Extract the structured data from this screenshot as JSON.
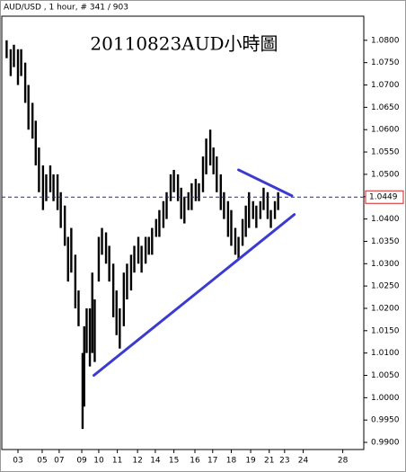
{
  "chart_data": {
    "type": "range",
    "header": "AUD/USD , 1 hour, # 341 / 903",
    "title": "20110823AUD小時圖",
    "color": "#000000",
    "x": [
      4,
      9,
      13,
      18,
      22,
      27,
      31,
      36,
      40,
      44,
      49,
      53,
      58,
      62,
      67,
      71,
      76,
      80,
      84,
      89,
      93,
      98,
      100,
      103,
      107,
      110,
      113,
      118,
      122,
      127,
      131,
      136,
      140,
      144,
      149,
      153,
      158,
      162,
      167,
      171,
      176,
      180,
      184,
      189,
      193,
      198,
      202,
      207,
      211,
      216,
      220,
      224,
      229,
      233,
      238,
      242,
      247,
      251,
      256,
      260,
      264,
      269,
      273,
      278,
      282,
      287,
      291,
      296,
      300,
      304,
      309,
      313,
      318,
      322,
      327,
      331,
      336,
      340
    ],
    "lows": [
      1.076,
      1.072,
      1.074,
      1.07,
      1.072,
      1.066,
      1.06,
      1.058,
      1.052,
      1.046,
      1.042,
      1.044,
      1.046,
      1.044,
      1.042,
      1.038,
      1.034,
      1.026,
      1.028,
      1.02,
      1.016,
      0.993,
      0.998,
      1.01,
      1.007,
      1.01,
      1.008,
      1.026,
      1.032,
      1.03,
      1.026,
      1.018,
      1.014,
      1.011,
      1.016,
      1.022,
      1.024,
      1.028,
      1.03,
      1.028,
      1.03,
      1.032,
      1.032,
      1.036,
      1.036,
      1.038,
      1.04,
      1.044,
      1.046,
      1.044,
      1.04,
      1.039,
      1.042,
      1.042,
      1.044,
      1.044,
      1.046,
      1.05,
      1.052,
      1.05,
      1.046,
      1.042,
      1.04,
      1.036,
      1.034,
      1.032,
      1.031,
      1.034,
      1.036,
      1.038,
      1.04,
      1.038,
      1.04,
      1.042,
      1.04,
      1.038,
      1.04,
      1.042
    ],
    "highs": [
      1.08,
      1.078,
      1.079,
      1.078,
      1.078,
      1.075,
      1.07,
      1.066,
      1.062,
      1.056,
      1.052,
      1.05,
      1.052,
      1.05,
      1.05,
      1.046,
      1.043,
      1.036,
      1.038,
      1.032,
      1.024,
      1.01,
      1.016,
      1.02,
      1.02,
      1.028,
      1.022,
      1.036,
      1.038,
      1.037,
      1.034,
      1.03,
      1.024,
      1.02,
      1.028,
      1.03,
      1.032,
      1.034,
      1.036,
      1.034,
      1.036,
      1.036,
      1.038,
      1.04,
      1.042,
      1.044,
      1.046,
      1.05,
      1.051,
      1.05,
      1.047,
      1.045,
      1.046,
      1.048,
      1.049,
      1.048,
      1.054,
      1.058,
      1.06,
      1.056,
      1.054,
      1.05,
      1.046,
      1.044,
      1.042,
      1.038,
      1.036,
      1.04,
      1.043,
      1.046,
      1.044,
      1.043,
      1.044,
      1.047,
      1.046,
      1.042,
      1.044,
      1.046
    ],
    "xlim": [
      -2,
      446
    ],
    "ylim": [
      0.9884,
      1.0854
    ],
    "yticks": [
      {
        "value": 0.99,
        "label": "0.9900"
      },
      {
        "value": 0.995,
        "label": "0.9950"
      },
      {
        "value": 1.0,
        "label": "1.0000"
      },
      {
        "value": 1.005,
        "label": "1.0050"
      },
      {
        "value": 1.01,
        "label": "1.0100"
      },
      {
        "value": 1.015,
        "label": "1.0150"
      },
      {
        "value": 1.02,
        "label": "1.0200"
      },
      {
        "value": 1.025,
        "label": "1.0250"
      },
      {
        "value": 1.03,
        "label": "1.0300"
      },
      {
        "value": 1.035,
        "label": "1.0350"
      },
      {
        "value": 1.04,
        "label": "1.0400"
      },
      {
        "value": 1.045,
        "label": "1.0450"
      },
      {
        "value": 1.05,
        "label": "1.0500"
      },
      {
        "value": 1.055,
        "label": "1.0550"
      },
      {
        "value": 1.06,
        "label": "1.0600"
      },
      {
        "value": 1.065,
        "label": "1.0650"
      },
      {
        "value": 1.07,
        "label": "1.0700"
      },
      {
        "value": 1.075,
        "label": "1.0750"
      },
      {
        "value": 1.08,
        "label": "1.0800"
      }
    ],
    "xticks": [
      {
        "value": 18,
        "label": "03"
      },
      {
        "value": 48,
        "label": "05"
      },
      {
        "value": 69,
        "label": "07"
      },
      {
        "value": 97,
        "label": "09"
      },
      {
        "value": 118,
        "label": "10"
      },
      {
        "value": 141,
        "label": "11"
      },
      {
        "value": 166,
        "label": "12"
      },
      {
        "value": 188,
        "label": "14"
      },
      {
        "value": 211,
        "label": "15"
      },
      {
        "value": 237,
        "label": "16"
      },
      {
        "value": 259,
        "label": "17"
      },
      {
        "value": 282,
        "label": "18"
      },
      {
        "value": 306,
        "label": "19"
      },
      {
        "value": 329,
        "label": "21"
      },
      {
        "value": 348,
        "label": "23"
      },
      {
        "value": 371,
        "label": "24"
      },
      {
        "value": 420,
        "label": "28"
      }
    ],
    "last_price": {
      "value": 1.0449,
      "label": "1.0449",
      "color": "#2020c0"
    },
    "trendlines": [
      {
        "x": [
          112,
          360
        ],
        "y": [
          1.005,
          1.041
        ],
        "color": "#3b3bd0"
      },
      {
        "x": [
          291,
          357
        ],
        "y": [
          1.051,
          1.0452
        ],
        "color": "#3b3bd0"
      }
    ]
  }
}
